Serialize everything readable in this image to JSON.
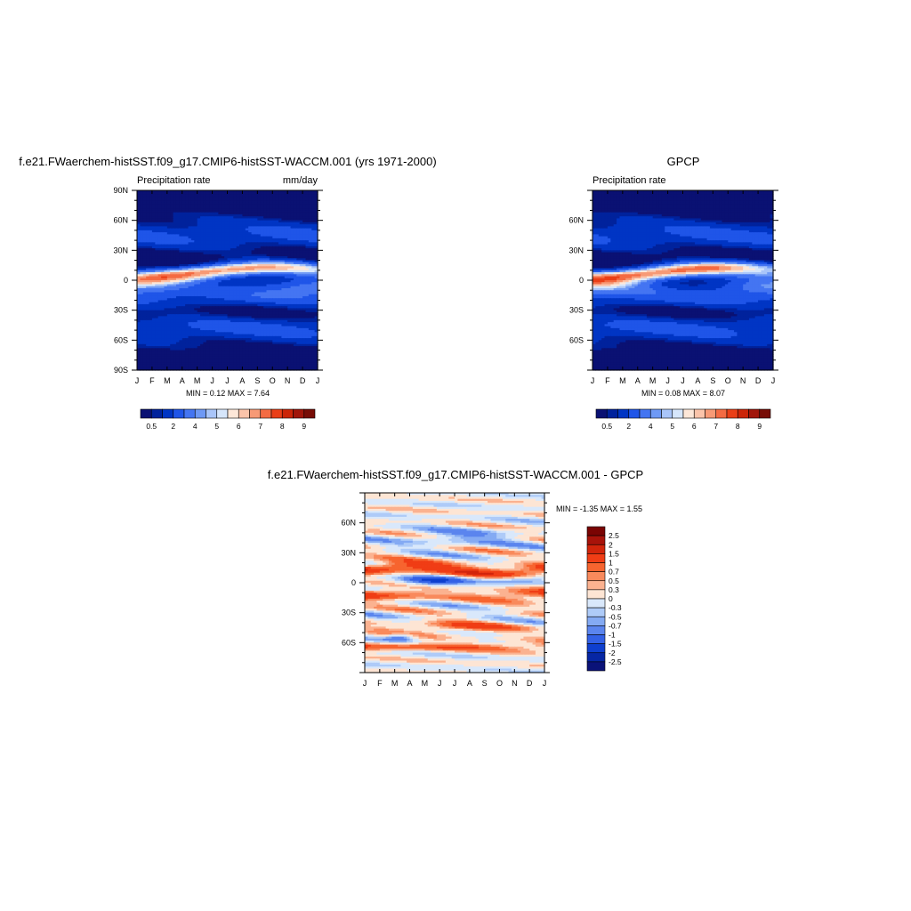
{
  "chart_data": [
    {
      "type": "heatmap",
      "title": "f.e21.FWaerchem-histSST.f09_g17.CMIP6-histSST-WACCM.001 (yrs 1971-2000)",
      "left_label": "Precipitation rate",
      "right_label": "mm/day",
      "x": [
        "J",
        "F",
        "M",
        "A",
        "M",
        "J",
        "J",
        "A",
        "S",
        "O",
        "N",
        "D",
        "J"
      ],
      "y_ticks": [
        "90N",
        "60N",
        "30N",
        "0",
        "30S",
        "60S",
        "90S"
      ],
      "min_label": "MIN =   0.12 MAX =   7.64",
      "colorbar": {
        "levels": [
          0.5,
          1,
          2,
          3,
          4,
          4.5,
          5,
          5.5,
          6,
          6.5,
          7,
          7.5,
          8,
          8.5,
          9
        ],
        "tick_labels": [
          "0.5",
          "2",
          "4",
          "5",
          "6",
          "7",
          "8",
          "9"
        ],
        "colors": [
          "#0a1173",
          "#00229c",
          "#0035c4",
          "#1f55e8",
          "#4475f2",
          "#6e99f5",
          "#a9c5f9",
          "#d6e6fb",
          "#fde7d8",
          "#fbc4aa",
          "#f79a76",
          "#f46b43",
          "#ea3f17",
          "#cb2508",
          "#a1150a",
          "#770c06"
        ]
      },
      "grid": false
    },
    {
      "type": "heatmap",
      "title": "GPCP",
      "left_label": "Precipitation rate",
      "x": [
        "J",
        "F",
        "M",
        "A",
        "M",
        "J",
        "J",
        "A",
        "S",
        "O",
        "N",
        "D",
        "J"
      ],
      "y_ticks": [
        "60N",
        "30N",
        "0",
        "30S",
        "60S"
      ],
      "min_label": "MIN =   0.08 MAX =   8.07",
      "colorbar": {
        "levels": [
          0.5,
          1,
          2,
          3,
          4,
          4.5,
          5,
          5.5,
          6,
          6.5,
          7,
          7.5,
          8,
          8.5,
          9
        ],
        "tick_labels": [
          "0.5",
          "2",
          "4",
          "5",
          "6",
          "7",
          "8",
          "9"
        ],
        "colors": [
          "#0a1173",
          "#00229c",
          "#0035c4",
          "#1f55e8",
          "#4475f2",
          "#6e99f5",
          "#a9c5f9",
          "#d6e6fb",
          "#fde7d8",
          "#fbc4aa",
          "#f79a76",
          "#f46b43",
          "#ea3f17",
          "#cb2508",
          "#a1150a",
          "#770c06"
        ]
      },
      "grid": false
    },
    {
      "type": "heatmap",
      "title": "f.e21.FWaerchem-histSST.f09_g17.CMIP6-histSST-WACCM.001 - GPCP",
      "x": [
        "J",
        "F",
        "M",
        "A",
        "M",
        "J",
        "J",
        "A",
        "S",
        "O",
        "N",
        "D",
        "J"
      ],
      "y_ticks": [
        "60N",
        "30N",
        "0",
        "30S",
        "60S"
      ],
      "min_label": "MIN =  -1.35 MAX =   1.55",
      "colorbar": {
        "labels": [
          "2.5",
          "2",
          "1.5",
          "1",
          "0.7",
          "0.5",
          "0.3",
          "0",
          "-0.3",
          "-0.5",
          "-0.7",
          "-1",
          "-1.5",
          "-2",
          "-2.5"
        ],
        "colors": [
          "#7a0403",
          "#a8130a",
          "#d2250b",
          "#f03d15",
          "#f7642f",
          "#f98a5c",
          "#fbb290",
          "#fde5d4",
          "#d9e8fb",
          "#aecbf8",
          "#84aaf3",
          "#5b85ee",
          "#3361e6",
          "#0e3fcf",
          "#0626a4",
          "#0a1278"
        ]
      },
      "grid": false
    }
  ]
}
